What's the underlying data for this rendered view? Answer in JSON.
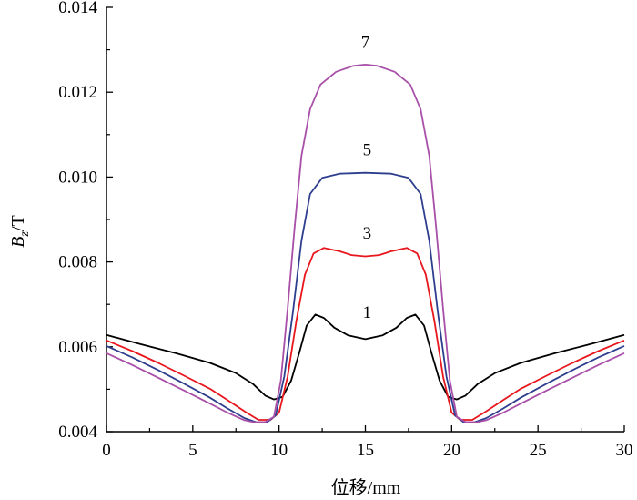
{
  "chart_data": {
    "type": "line",
    "title": "",
    "xlabel": "位移/mm",
    "ylabel_main": "B",
    "ylabel_sub": "z",
    "ylabel_unit": "/T",
    "xlim": [
      0,
      30
    ],
    "ylim": [
      0.004,
      0.014
    ],
    "xticks": [
      0,
      5,
      10,
      15,
      20,
      25,
      30
    ],
    "xtick_labels": [
      "0",
      "5",
      "10",
      "15",
      "20",
      "25",
      "30"
    ],
    "yticks": [
      0.004,
      0.006,
      0.008,
      0.01,
      0.012,
      0.014
    ],
    "ytick_labels": [
      "0.004",
      "0.006",
      "0.008",
      "0.010",
      "0.012",
      "0.014"
    ],
    "grid": false,
    "series": [
      {
        "name": "1",
        "color": "#000000",
        "label_at": [
          15.1,
          0.00668
        ],
        "points": [
          [
            0,
            0.00628
          ],
          [
            2,
            0.00606
          ],
          [
            4,
            0.00585
          ],
          [
            6,
            0.00562
          ],
          [
            7.5,
            0.00538
          ],
          [
            8.5,
            0.00512
          ],
          [
            9.2,
            0.00485
          ],
          [
            9.7,
            0.00476
          ],
          [
            10.2,
            0.00482
          ],
          [
            10.7,
            0.0052
          ],
          [
            11.2,
            0.0059
          ],
          [
            11.6,
            0.0065
          ],
          [
            12.1,
            0.00676
          ],
          [
            12.6,
            0.00668
          ],
          [
            13.2,
            0.00645
          ],
          [
            14,
            0.00627
          ],
          [
            15,
            0.00618
          ],
          [
            16,
            0.00627
          ],
          [
            16.8,
            0.00645
          ],
          [
            17.4,
            0.00668
          ],
          [
            17.9,
            0.00676
          ],
          [
            18.4,
            0.0065
          ],
          [
            18.8,
            0.0059
          ],
          [
            19.3,
            0.0052
          ],
          [
            19.8,
            0.00482
          ],
          [
            20.3,
            0.00476
          ],
          [
            20.8,
            0.00485
          ],
          [
            21.5,
            0.00512
          ],
          [
            22.5,
            0.00538
          ],
          [
            24,
            0.00562
          ],
          [
            26,
            0.00585
          ],
          [
            28,
            0.00606
          ],
          [
            30,
            0.00628
          ]
        ]
      },
      {
        "name": "3",
        "color": "#e8161d",
        "label_at": [
          15.1,
          0.00855
        ],
        "points": [
          [
            0,
            0.00615
          ],
          [
            1.5,
            0.0059
          ],
          [
            3,
            0.00562
          ],
          [
            4.5,
            0.00532
          ],
          [
            6,
            0.00501
          ],
          [
            7,
            0.00475
          ],
          [
            8,
            0.00448
          ],
          [
            8.8,
            0.00428
          ],
          [
            9.5,
            0.00428
          ],
          [
            10,
            0.00445
          ],
          [
            10.5,
            0.0053
          ],
          [
            11,
            0.0066
          ],
          [
            11.5,
            0.0077
          ],
          [
            12,
            0.0082
          ],
          [
            12.6,
            0.00833
          ],
          [
            13.5,
            0.00825
          ],
          [
            14.2,
            0.00816
          ],
          [
            15,
            0.00813
          ],
          [
            15.8,
            0.00816
          ],
          [
            16.5,
            0.00825
          ],
          [
            17.4,
            0.00833
          ],
          [
            18,
            0.0082
          ],
          [
            18.5,
            0.0077
          ],
          [
            19,
            0.0066
          ],
          [
            19.5,
            0.0053
          ],
          [
            20,
            0.00445
          ],
          [
            20.5,
            0.00428
          ],
          [
            21.2,
            0.00428
          ],
          [
            22,
            0.00448
          ],
          [
            23,
            0.00475
          ],
          [
            24,
            0.00501
          ],
          [
            25.5,
            0.00532
          ],
          [
            27,
            0.00562
          ],
          [
            28.5,
            0.0059
          ],
          [
            30,
            0.00615
          ]
        ]
      },
      {
        "name": "5",
        "color": "#2e3e8e",
        "label_at": [
          15.1,
          0.01051
        ],
        "points": [
          [
            0,
            0.00602
          ],
          [
            1.5,
            0.00575
          ],
          [
            3,
            0.00545
          ],
          [
            4.5,
            0.00513
          ],
          [
            6,
            0.0048
          ],
          [
            7,
            0.00455
          ],
          [
            8,
            0.00432
          ],
          [
            8.7,
            0.00422
          ],
          [
            9.3,
            0.00422
          ],
          [
            9.8,
            0.00438
          ],
          [
            10.3,
            0.0053
          ],
          [
            10.8,
            0.0068
          ],
          [
            11.3,
            0.0085
          ],
          [
            11.8,
            0.0096
          ],
          [
            12.5,
            0.00998
          ],
          [
            13.5,
            0.01008
          ],
          [
            15,
            0.0101
          ],
          [
            16.5,
            0.01008
          ],
          [
            17.5,
            0.00998
          ],
          [
            18.2,
            0.0096
          ],
          [
            18.7,
            0.0085
          ],
          [
            19.2,
            0.0068
          ],
          [
            19.7,
            0.0053
          ],
          [
            20.2,
            0.00438
          ],
          [
            20.7,
            0.00422
          ],
          [
            21.3,
            0.00422
          ],
          [
            22,
            0.00432
          ],
          [
            23,
            0.00455
          ],
          [
            24,
            0.0048
          ],
          [
            25.5,
            0.00513
          ],
          [
            27,
            0.00545
          ],
          [
            28.5,
            0.00575
          ],
          [
            30,
            0.00602
          ]
        ]
      },
      {
        "name": "7",
        "color": "#a84fa8",
        "label_at": [
          15.0,
          0.01305
        ],
        "points": [
          [
            0,
            0.00585
          ],
          [
            1.5,
            0.00557
          ],
          [
            3,
            0.00527
          ],
          [
            4.5,
            0.00497
          ],
          [
            6,
            0.00466
          ],
          [
            7,
            0.00445
          ],
          [
            8,
            0.00427
          ],
          [
            8.6,
            0.00422
          ],
          [
            9.2,
            0.00423
          ],
          [
            9.7,
            0.00435
          ],
          [
            10.1,
            0.0052
          ],
          [
            10.5,
            0.0069
          ],
          [
            10.9,
            0.0088
          ],
          [
            11.3,
            0.0105
          ],
          [
            11.8,
            0.0116
          ],
          [
            12.4,
            0.01218
          ],
          [
            13.3,
            0.01248
          ],
          [
            14.3,
            0.01262
          ],
          [
            15,
            0.01265
          ],
          [
            15.7,
            0.01262
          ],
          [
            16.7,
            0.01248
          ],
          [
            17.6,
            0.01218
          ],
          [
            18.2,
            0.0116
          ],
          [
            18.7,
            0.0105
          ],
          [
            19.1,
            0.0088
          ],
          [
            19.5,
            0.0069
          ],
          [
            19.9,
            0.0052
          ],
          [
            20.3,
            0.00435
          ],
          [
            20.8,
            0.00423
          ],
          [
            21.4,
            0.00422
          ],
          [
            22,
            0.00427
          ],
          [
            23,
            0.00445
          ],
          [
            24,
            0.00466
          ],
          [
            25.5,
            0.00497
          ],
          [
            27,
            0.00527
          ],
          [
            28.5,
            0.00557
          ],
          [
            30,
            0.00585
          ]
        ]
      }
    ]
  }
}
